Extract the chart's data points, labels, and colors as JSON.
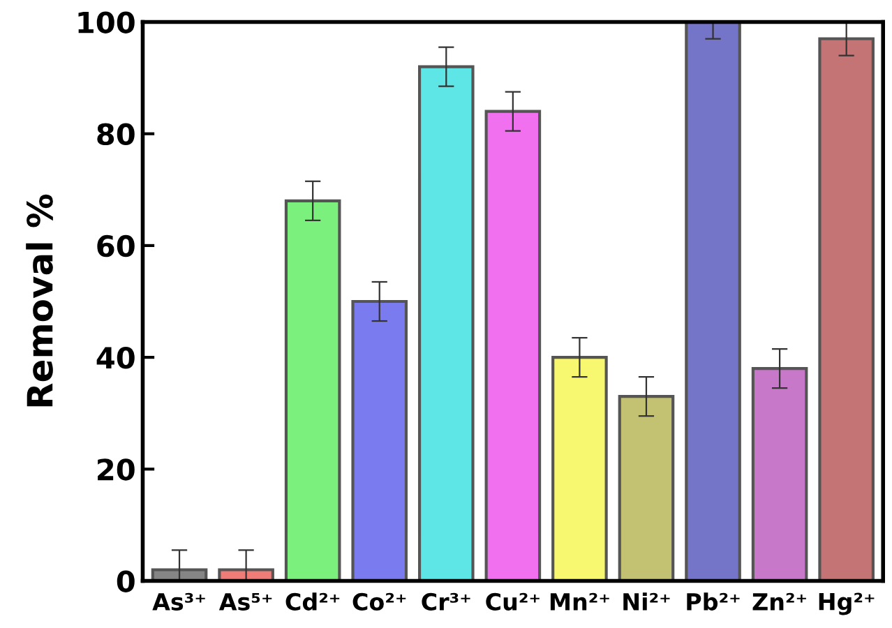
{
  "chart_data": {
    "type": "bar",
    "ylabel": "Removal %",
    "categories": [
      "As³⁺",
      "As⁵⁺",
      "Cd²⁺",
      "Co²⁺",
      "Cr³⁺",
      "Cu²⁺",
      "Mn²⁺",
      "Ni²⁺",
      "Pb²⁺",
      "Zn²⁺",
      "Hg²⁺"
    ],
    "values": [
      2,
      2,
      68,
      50,
      92,
      84,
      40,
      33,
      100,
      38,
      97
    ],
    "errors": [
      3.5,
      3.5,
      3.5,
      3.5,
      3.5,
      3.5,
      3.5,
      3.5,
      [
        97,
        100
      ],
      3.5,
      3
    ],
    "colors": [
      "#858585",
      "#f07c78",
      "#7cf07c",
      "#7b7bf0",
      "#5ee6e6",
      "#f070f0",
      "#f8f870",
      "#c2c272",
      "#7474c8",
      "#c878c8",
      "#c47474"
    ],
    "ylim": [
      0,
      100
    ],
    "yticks": [
      0,
      20,
      40,
      60,
      80,
      100
    ],
    "grid": false
  }
}
